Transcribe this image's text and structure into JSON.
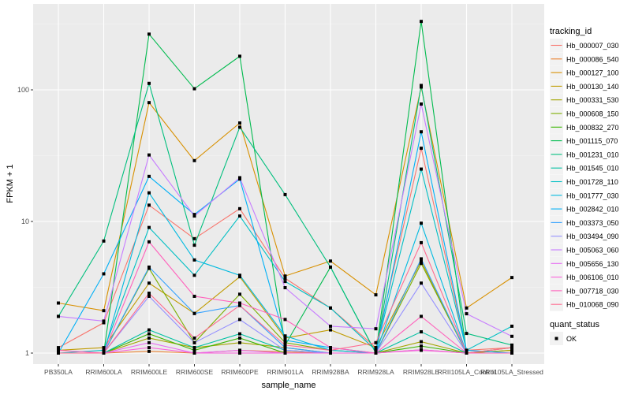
{
  "chart_data": {
    "type": "line",
    "title": "",
    "xlabel": "sample_name",
    "ylabel": "FPKM + 1",
    "yscale": "log10",
    "ylim": [
      0.82,
      450
    ],
    "y_ticks": [
      1,
      10,
      100
    ],
    "y_tick_labels": [
      "1",
      "10",
      "100"
    ],
    "grid": true,
    "categories": [
      "PB350LA",
      "RRIM600LA",
      "RRIM600LE",
      "RRIM600SE",
      "RRIM600PE",
      "RRIM901LA",
      "RRIM928BA",
      "RRIM928LA",
      "RRIM928LE",
      "RRII105LA_Control",
      "RRII105LA_Stressed"
    ],
    "legend": {
      "title": "tracking_id",
      "placement": "right",
      "shape_title": "quant_status",
      "shape_entries": [
        "OK"
      ]
    },
    "series": [
      {
        "name": "Hb_000007_030",
        "color": "#F8766D",
        "values": [
          1.1,
          1.7,
          13.3,
          7.4,
          12.5,
          3.7,
          2.2,
          1.1,
          36,
          1.05,
          1.1
        ]
      },
      {
        "name": "Hb_000086_540",
        "color": "#EA8331",
        "values": [
          1.0,
          1.0,
          1.03,
          1.0,
          1.05,
          1.02,
          1.0,
          1.0,
          1.06,
          1.0,
          1.0
        ]
      },
      {
        "name": "Hb_000127_100",
        "color": "#D89000",
        "values": [
          2.4,
          2.1,
          80,
          29,
          56,
          3.85,
          5.0,
          2.77,
          105,
          2.2,
          3.75
        ]
      },
      {
        "name": "Hb_000130_140",
        "color": "#C09B00",
        "values": [
          1.05,
          1.1,
          3.4,
          2.0,
          3.8,
          1.3,
          1.5,
          1.1,
          5.0,
          1.0,
          1.05
        ]
      },
      {
        "name": "Hb_000331_530",
        "color": "#A3A500",
        "values": [
          1.0,
          1.0,
          1.3,
          1.1,
          1.2,
          1.1,
          1.0,
          1.0,
          1.22,
          1.0,
          1.05
        ]
      },
      {
        "name": "Hb_000608_150",
        "color": "#7CAE00",
        "values": [
          1.0,
          1.0,
          4.4,
          1.2,
          2.8,
          1.2,
          1.05,
          1.0,
          4.8,
          1.0,
          1.1
        ]
      },
      {
        "name": "Hb_000832_270",
        "color": "#39B600",
        "values": [
          1.0,
          1.0,
          1.4,
          1.05,
          1.3,
          1.0,
          1.0,
          1.0,
          1.13,
          1.0,
          1.0
        ]
      },
      {
        "name": "Hb_001115_070",
        "color": "#00BB4E",
        "values": [
          1.0,
          1.0,
          265,
          102,
          180,
          1.15,
          4.5,
          1.0,
          331,
          1.0,
          1.0
        ]
      },
      {
        "name": "Hb_001231_010",
        "color": "#00BF7D",
        "values": [
          1.9,
          7.1,
          112,
          6.6,
          52,
          16,
          4.5,
          1.0,
          108,
          1.41,
          1.15
        ]
      },
      {
        "name": "Hb_001545_010",
        "color": "#00C1A3",
        "values": [
          1.0,
          1.0,
          1.5,
          1.1,
          1.4,
          1.05,
          1.0,
          1.0,
          1.45,
          1.0,
          1.0
        ]
      },
      {
        "name": "Hb_001728_110",
        "color": "#00BFC4",
        "values": [
          1.0,
          1.05,
          9,
          3.9,
          11,
          3.5,
          2.2,
          1.05,
          25,
          1.05,
          1.6
        ]
      },
      {
        "name": "Hb_001777_030",
        "color": "#00BAE0",
        "values": [
          1.0,
          1.0,
          16.5,
          5.1,
          3.9,
          1.35,
          1.05,
          1.0,
          9.7,
          1.0,
          1.0
        ]
      },
      {
        "name": "Hb_002842_010",
        "color": "#00B0F6",
        "values": [
          1.0,
          4.0,
          22,
          11.3,
          21,
          1.25,
          1.1,
          1.0,
          48,
          1.05,
          1.0
        ]
      },
      {
        "name": "Hb_003373_050",
        "color": "#35A2FF",
        "values": [
          1.0,
          1.0,
          4.5,
          2.0,
          2.3,
          1.1,
          1.0,
          1.0,
          5.2,
          1.0,
          1.0
        ]
      },
      {
        "name": "Hb_003494_090",
        "color": "#9590FF",
        "values": [
          1.0,
          1.0,
          2.7,
          1.2,
          1.8,
          1.05,
          1.0,
          1.0,
          3.4,
          1.0,
          1.0
        ]
      },
      {
        "name": "Hb_005063_060",
        "color": "#C77CFF",
        "values": [
          1.9,
          1.75,
          32,
          11,
          21.5,
          3.14,
          1.6,
          1.53,
          78,
          1.99,
          1.34
        ]
      },
      {
        "name": "Hb_005656_130",
        "color": "#E76BF3",
        "values": [
          1.0,
          1.0,
          1.2,
          1.0,
          1.05,
          1.0,
          1.0,
          1.0,
          1.06,
          1.0,
          1.0
        ]
      },
      {
        "name": "Hb_006106_010",
        "color": "#FA62DB",
        "values": [
          1.0,
          1.0,
          1.1,
          1.0,
          1.0,
          1.0,
          1.0,
          1.0,
          1.05,
          1.0,
          1.0
        ]
      },
      {
        "name": "Hb_007718_030",
        "color": "#FF62BC",
        "values": [
          1.05,
          1.0,
          7,
          2.7,
          2.4,
          1.8,
          1.1,
          1.0,
          1.9,
          1.0,
          1.0
        ]
      },
      {
        "name": "Hb_010068_090",
        "color": "#FF6C91",
        "values": [
          1.0,
          1.0,
          2.85,
          1.3,
          2.3,
          1.15,
          1.05,
          1.2,
          6.9,
          1.0,
          1.1
        ]
      }
    ]
  }
}
